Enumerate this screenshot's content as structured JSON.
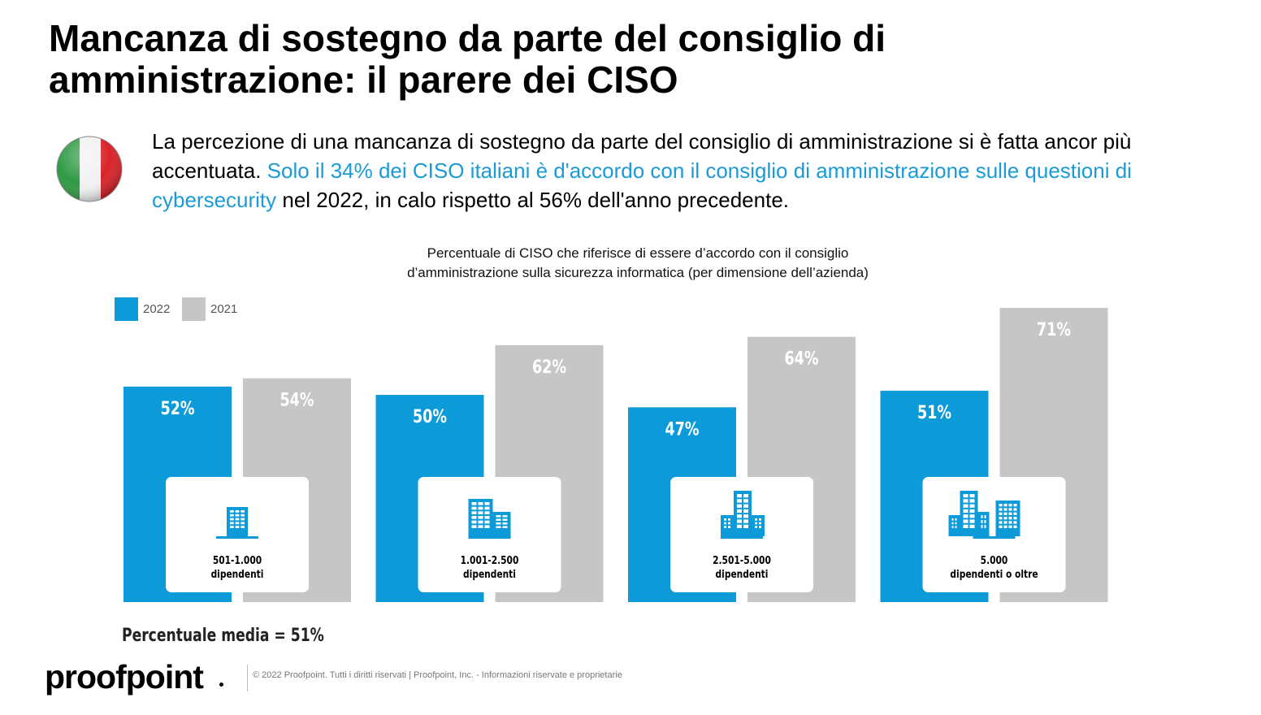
{
  "page": {
    "title_line1": "Mancanza di sostegno da parte del consiglio di",
    "title_line2": "amministrazione: il parere dei CISO",
    "intro_part1": "La percezione di una mancanza di sostegno da parte del consiglio di amministrazione si è fatta ancor più accentuata. ",
    "intro_highlight": "Solo il 34% dei CISO italiani è d'accordo con il consiglio di amministrazione sulle questioni di cybersecurity",
    "intro_part2": " nel 2022, in calo rispetto al 56% dell'anno precedente.",
    "average": "Percentuale media = 51%",
    "logo": "proofpoint",
    "footer": "© 2022  Proofpoint. Tutti i diritti riservati  |  Proofpoint, Inc. - Informazioni riservate e proprietarie"
  },
  "colors": {
    "series_2022": "#0d9ad9",
    "series_2021": "#c6c6c6",
    "highlight_text": "#1a9bd7",
    "flag_green": "#2f9a44",
    "flag_white": "#f2f2f2",
    "flag_red": "#d8232a"
  },
  "chart_data": {
    "type": "bar",
    "title_line1": "Percentuale di CISO che riferisce di essere d’accordo con il consiglio",
    "title_line2": "d’amministrazione sulla sicurezza informatica (per dimensione dell’azienda)",
    "categories": [
      {
        "line1": "501-1.000",
        "line2": "dipendenti",
        "icon": "small-building-icon"
      },
      {
        "line1": "1.001-2.500",
        "line2": "dipendenti",
        "icon": "medium-building-icon"
      },
      {
        "line1": "2.501-5.000",
        "line2": "dipendenti",
        "icon": "large-building-icon"
      },
      {
        "line1": "5.000",
        "line2": "dipendenti o oltre",
        "icon": "two-buildings-icon"
      }
    ],
    "series": [
      {
        "name": "2022",
        "values": [
          52,
          50,
          47,
          51
        ],
        "labels": [
          "52%",
          "50%",
          "47%",
          "51%"
        ]
      },
      {
        "name": "2021",
        "values": [
          54,
          62,
          64,
          71
        ],
        "labels": [
          "54%",
          "62%",
          "64%",
          "71%"
        ]
      }
    ],
    "legend_position": "top-left",
    "grid": false
  }
}
